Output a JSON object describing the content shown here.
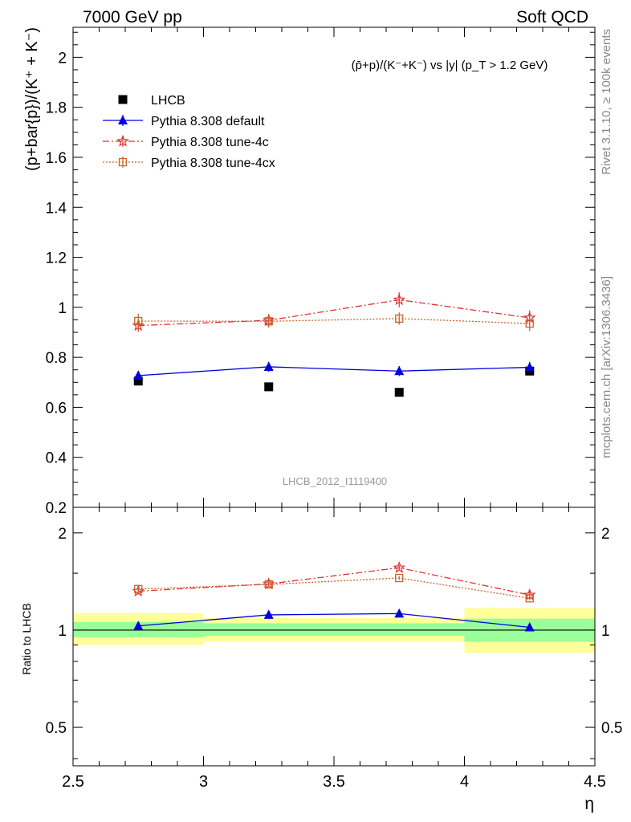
{
  "header": {
    "left": "7000 GeV pp",
    "right": "Soft QCD"
  },
  "side_labels": {
    "rivet": "Rivet 3.1.10, ≥ 100k events",
    "source": "mcplots.cern.ch [arXiv:1306.3436]"
  },
  "watermark": "LHCB_2012_I1119400",
  "chart_data": [
    {
      "type": "line",
      "title": "(p̄+p)/(K⁻+K⁻) vs |y| (p_T > 1.2 GeV)",
      "xlabel": "η",
      "ylabel": "(p+bar{p})/(K⁺ + K⁻)",
      "xlim": [
        2.5,
        4.5
      ],
      "ylim": [
        0.2,
        2.12
      ],
      "yticks": [
        "0.2",
        "0.4",
        "0.6",
        "0.8",
        "1",
        "1.2",
        "1.4",
        "1.6",
        "1.8",
        "2"
      ],
      "xticks": [
        "2.5",
        "3",
        "3.5",
        "4",
        "4.5"
      ],
      "legend_position": "top-left",
      "x": [
        2.75,
        3.25,
        3.75,
        4.25
      ],
      "series": [
        {
          "name": "LHCB",
          "marker": "square",
          "color": "#000000",
          "values": [
            0.705,
            0.682,
            0.66,
            0.745
          ],
          "errors": [
            0.01,
            0.01,
            0.01,
            0.01
          ]
        },
        {
          "name": "Pythia 8.308 default",
          "marker": "triangle",
          "color": "#0000dd",
          "line": "solid",
          "values": [
            0.727,
            0.762,
            0.745,
            0.76
          ],
          "errors": [
            0.018,
            0.02,
            0.02,
            0.022
          ]
        },
        {
          "name": "Pythia 8.308 tune-4c",
          "marker": "star",
          "color": "#dd3333",
          "line": "dashdot",
          "values": [
            0.927,
            0.948,
            1.03,
            0.958
          ],
          "errors": [
            0.025,
            0.025,
            0.03,
            0.03
          ]
        },
        {
          "name": "Pythia 8.308 tune-4cx",
          "marker": "open-square",
          "color": "#c86428",
          "line": "dotted",
          "values": [
            0.945,
            0.944,
            0.955,
            0.935
          ],
          "errors": [
            0.03,
            0.025,
            0.025,
            0.03
          ]
        }
      ]
    },
    {
      "type": "line",
      "ylabel": "Ratio to LHCB",
      "xlabel": "η",
      "xlim": [
        2.5,
        4.5
      ],
      "ylim": [
        0.38,
        2.4
      ],
      "yscale": "log",
      "yticks": [
        "0.5",
        "1",
        "2"
      ],
      "xticks": [
        "2.5",
        "3",
        "3.5",
        "4",
        "4.5"
      ],
      "x": [
        2.75,
        3.25,
        3.75,
        4.25
      ],
      "bands": [
        {
          "x0": 2.5,
          "x1": 3.0,
          "inner": [
            0.95,
            1.06
          ],
          "outer": [
            0.9,
            1.13
          ]
        },
        {
          "x0": 3.0,
          "x1": 3.5,
          "inner": [
            0.96,
            1.05
          ],
          "outer": [
            0.92,
            1.09
          ]
        },
        {
          "x0": 3.5,
          "x1": 4.0,
          "inner": [
            0.96,
            1.05
          ],
          "outer": [
            0.92,
            1.09
          ]
        },
        {
          "x0": 4.0,
          "x1": 4.5,
          "inner": [
            0.92,
            1.085
          ],
          "outer": [
            0.85,
            1.17
          ]
        }
      ],
      "series": [
        {
          "name": "Pythia 8.308 default",
          "color": "#0000dd",
          "line": "solid",
          "values": [
            1.03,
            1.115,
            1.125,
            1.02
          ],
          "errors": [
            0.02,
            0.02,
            0.02,
            0.02
          ]
        },
        {
          "name": "Pythia 8.308 tune-4c",
          "color": "#dd3333",
          "line": "dashdot",
          "values": [
            1.32,
            1.39,
            1.56,
            1.285
          ],
          "errors": [
            0.03,
            0.03,
            0.03,
            0.04
          ]
        },
        {
          "name": "Pythia 8.308 tune-4cx",
          "color": "#c86428",
          "line": "dotted",
          "values": [
            1.34,
            1.385,
            1.45,
            1.255
          ],
          "errors": [
            0.02,
            0.02,
            0.02,
            0.02
          ]
        }
      ]
    }
  ]
}
